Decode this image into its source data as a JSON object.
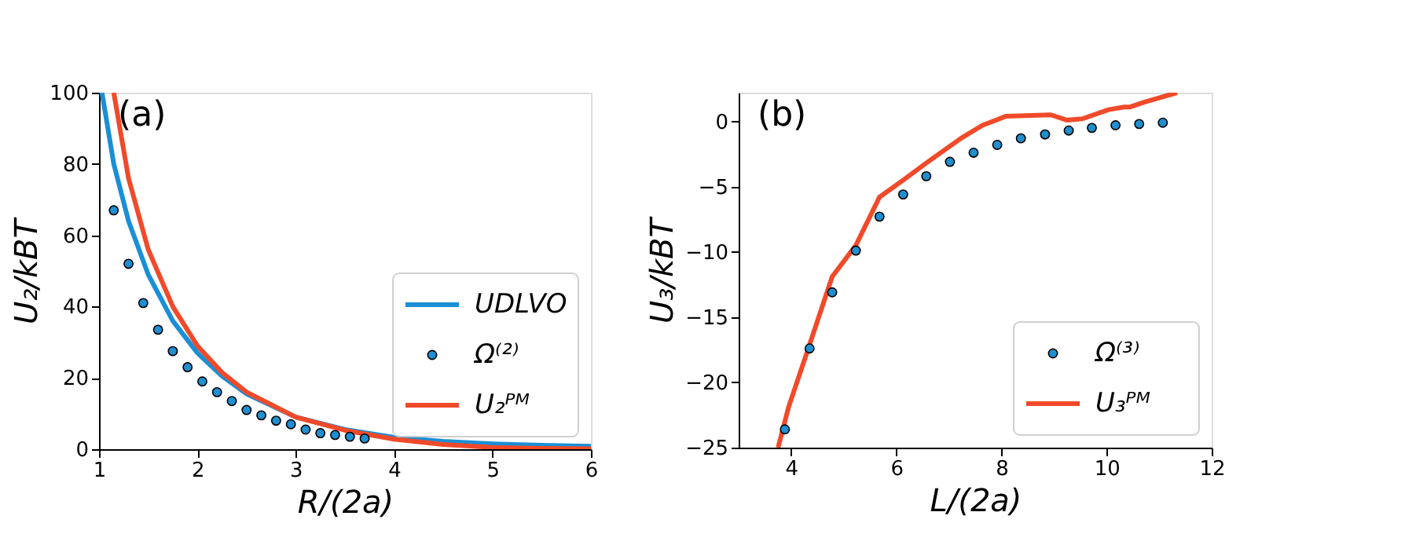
{
  "chart_data": [
    {
      "type": "line",
      "xlabel": "R/(2a)",
      "ylabel": "U₂/kBT",
      "xlim": [
        1,
        6
      ],
      "ylim": [
        0,
        100
      ],
      "xticks": [
        1,
        2,
        3,
        4,
        5,
        6
      ],
      "yticks": [
        0,
        20,
        40,
        60,
        80,
        100
      ],
      "grid": false,
      "legend": "bottom right",
      "annotations": [
        "(a)"
      ],
      "series": [
        {
          "name": "UDLVO",
          "color": "#1a8fd6",
          "line_style": "solid",
          "x": [
            1.03,
            1.15,
            1.3,
            1.5,
            1.75,
            2.0,
            2.25,
            2.5,
            3.0,
            3.5,
            4.0,
            4.5,
            5.0,
            5.5,
            6.0
          ],
          "values": [
            100,
            80,
            64,
            49,
            36,
            27,
            20.5,
            15.5,
            9,
            5.5,
            3.3,
            2.2,
            1.5,
            1.1,
            0.8
          ]
        },
        {
          "name": "Ω⁽²⁾",
          "type": "scatter",
          "marker": "circle",
          "color": "#1f8fd0",
          "x": [
            1.15,
            1.3,
            1.45,
            1.6,
            1.75,
            1.9,
            2.05,
            2.2,
            2.35,
            2.5,
            2.65,
            2.8,
            2.95,
            3.1,
            3.25,
            3.4,
            3.55,
            3.7
          ],
          "values": [
            67,
            52,
            41,
            33.5,
            27.5,
            23,
            19,
            16,
            13.5,
            11,
            9.5,
            8,
            7,
            5.5,
            4.5,
            4,
            3.5,
            3
          ]
        },
        {
          "name": "U₂ᴾᴹ",
          "color": "#f04a2a",
          "line_style": "solid",
          "x": [
            1.15,
            1.3,
            1.5,
            1.75,
            2.0,
            2.25,
            2.5,
            3.0,
            3.5,
            4.0,
            4.5,
            5.0,
            5.5,
            6.0
          ],
          "values": [
            100,
            76,
            56,
            40,
            29,
            21.5,
            16,
            9,
            5.3,
            2.8,
            1.3,
            0.5,
            0.2,
            0.1
          ]
        }
      ]
    },
    {
      "type": "line",
      "xlabel": "L/(2a)",
      "ylabel": "U₃/kBT",
      "xlim": [
        3,
        12
      ],
      "ylim": [
        -25,
        2.2
      ],
      "xticks": [
        4,
        6,
        8,
        10,
        12
      ],
      "yticks": [
        {
          "value": -25,
          "label": "−25"
        },
        {
          "value": -20,
          "label": "−20"
        },
        {
          "value": -15,
          "label": "−15"
        },
        {
          "value": -10,
          "label": "−10"
        },
        {
          "value": -5,
          "label": "−5"
        },
        0
      ],
      "grid": false,
      "legend": "bottom right",
      "annotations": [
        "(b)"
      ],
      "series": [
        {
          "name": "Ω⁽³⁾",
          "type": "scatter",
          "marker": "circle",
          "color": "#1f8fd0",
          "x": [
            3.88,
            4.35,
            4.78,
            5.23,
            5.68,
            6.13,
            6.57,
            7.02,
            7.47,
            7.92,
            8.37,
            8.83,
            9.28,
            9.72,
            10.17,
            10.62,
            11.07
          ],
          "values": [
            -23.6,
            -17.4,
            -13.1,
            -9.9,
            -7.3,
            -5.6,
            -4.2,
            -3.1,
            -2.4,
            -1.8,
            -1.3,
            -1.0,
            -0.7,
            -0.5,
            -0.3,
            -0.2,
            -0.1
          ]
        },
        {
          "name": "U₃ᴾᴹ",
          "color": "#f04a2a",
          "line_style": "solid",
          "x": [
            3.75,
            3.95,
            4.3,
            4.78,
            5.23,
            5.68,
            6.13,
            6.6,
            7.23,
            7.64,
            8.09,
            8.94,
            9.24,
            9.54,
            10.04,
            10.34,
            10.44,
            10.74,
            11.34
          ],
          "values": [
            -25,
            -21.9,
            -17.7,
            -11.9,
            -9.5,
            -5.8,
            -4.5,
            -3.1,
            -1.3,
            -0.3,
            0.4,
            0.5,
            0.1,
            0.2,
            0.9,
            1.1,
            1.1,
            1.5,
            2.2
          ]
        }
      ]
    }
  ]
}
